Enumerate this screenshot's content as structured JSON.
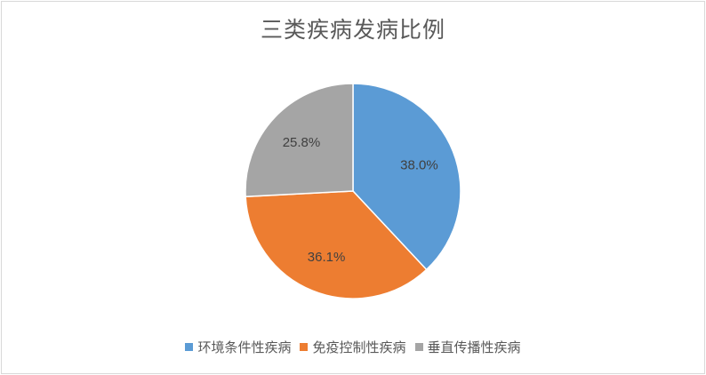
{
  "chart_data": {
    "type": "pie",
    "title": "三类疾病发病比例",
    "categories": [
      "环境条件性疾病",
      "免疫控制性疾病",
      "垂直传播性疾病"
    ],
    "values": [
      38.0,
      36.1,
      25.8
    ],
    "value_labels": [
      "38.0%",
      "36.1%",
      "25.8%"
    ],
    "colors": [
      "#5b9bd5",
      "#ed7d31",
      "#a5a5a5"
    ],
    "start_angle_deg": 0,
    "direction": "clockwise",
    "legend_position": "bottom"
  }
}
